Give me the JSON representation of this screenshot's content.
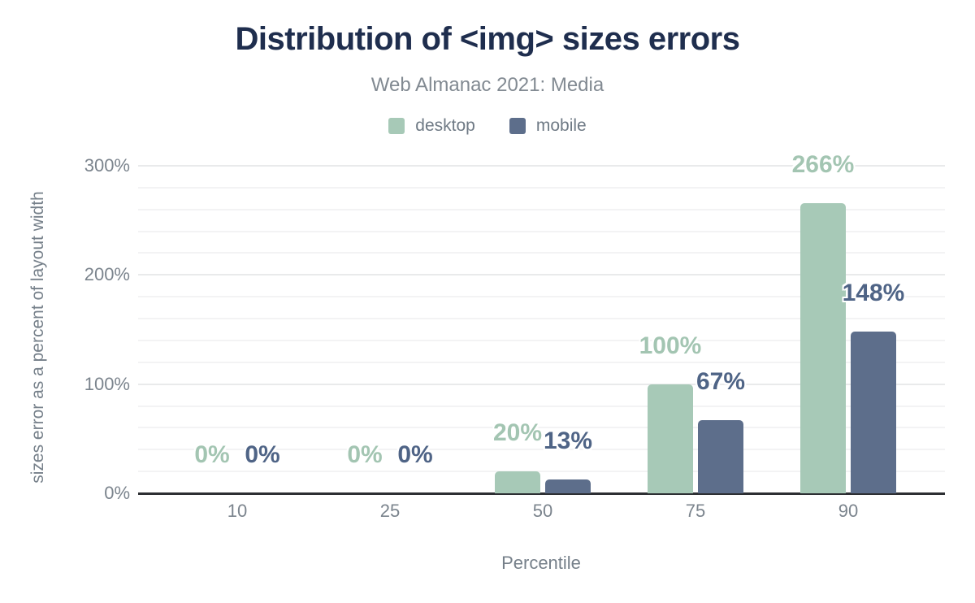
{
  "chart_data": {
    "type": "bar",
    "title": "Distribution of <img> sizes errors",
    "subtitle": "Web Almanac 2021: Media",
    "xlabel": "Percentile",
    "ylabel": "sizes error as a percent of layout width",
    "categories": [
      "10",
      "25",
      "50",
      "75",
      "90"
    ],
    "series": [
      {
        "name": "desktop",
        "color": "#a7c9b7",
        "label_color": "#a3c5b2",
        "values": [
          0,
          0,
          20,
          100,
          266
        ]
      },
      {
        "name": "mobile",
        "color": "#5d6e8b",
        "label_color": "#4f6486",
        "values": [
          0,
          0,
          13,
          67,
          148
        ]
      }
    ],
    "value_label_suffix": "%",
    "ylim": [
      0,
      300
    ],
    "y_major_ticks": [
      0,
      100,
      200,
      300
    ],
    "y_major_tick_labels": [
      "0%",
      "100%",
      "200%",
      "300%"
    ],
    "y_minor_step": 20,
    "grid": "horizontal-on",
    "legend_position": "top-center",
    "colors": {
      "title": "#1f2e4e",
      "subtitle": "#828a92",
      "axis_text": "#7b848d",
      "axis_line": "#2d2f33",
      "gridline_minor": "#f3f3f4",
      "gridline_major": "#e9eaeb",
      "background": "#ffffff"
    }
  }
}
